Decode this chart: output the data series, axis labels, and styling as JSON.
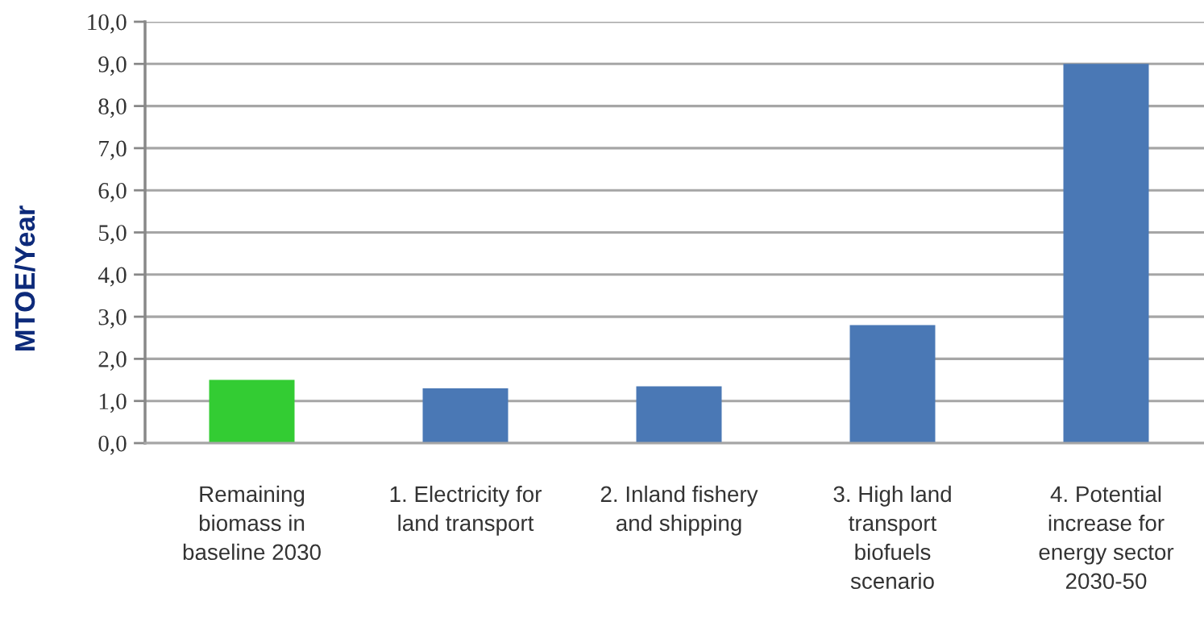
{
  "chart_data": {
    "type": "bar",
    "categories": [
      "Remaining\nbiomass in\nbaseline 2030",
      "1. Electricity for\nland transport",
      "2. Inland fishery\nand shipping",
      "3. High land\ntransport\nbiofuels\nscenario",
      "4. Potential\nincrease for\nenergy sector\n2030-50"
    ],
    "values": [
      1.5,
      1.3,
      1.35,
      2.8,
      9.0
    ],
    "colors": [
      "#33cc33",
      "#4a78b5",
      "#4a78b5",
      "#4a78b5",
      "#4a78b5"
    ],
    "ylabel": "MTOE/Year",
    "ylim": [
      0,
      10
    ],
    "yticks": [
      {
        "value": 0,
        "label": "0,0"
      },
      {
        "value": 1,
        "label": "1,0"
      },
      {
        "value": 2,
        "label": "2,0"
      },
      {
        "value": 3,
        "label": "3,0"
      },
      {
        "value": 4,
        "label": "4,0"
      },
      {
        "value": 5,
        "label": "5,0"
      },
      {
        "value": 6,
        "label": "6,0"
      },
      {
        "value": 7,
        "label": "7,0"
      },
      {
        "value": 8,
        "label": "8,0"
      },
      {
        "value": 9,
        "label": "9,0"
      },
      {
        "value": 10,
        "label": "10,0"
      }
    ],
    "grid": "y"
  }
}
